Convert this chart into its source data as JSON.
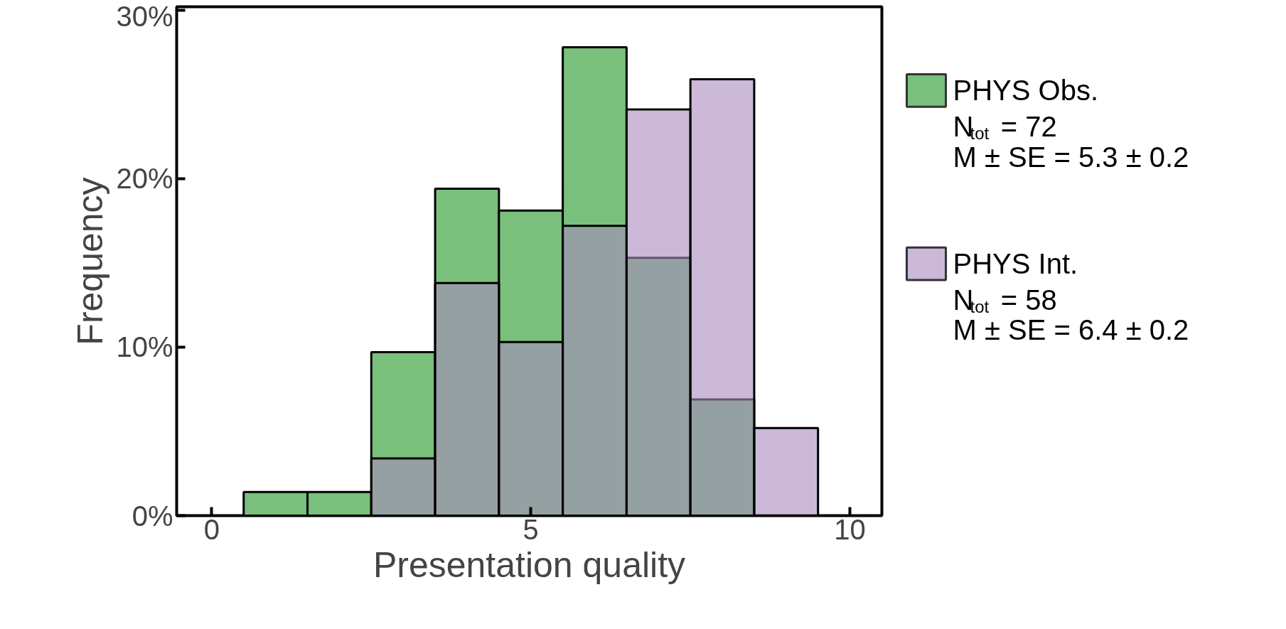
{
  "chart_data": {
    "type": "histogram",
    "xlabel": "Presentation quality",
    "ylabel": "Frequency",
    "bins": [
      0.5,
      1.5,
      2.5,
      3.5,
      4.5,
      5.5,
      6.5,
      7.5,
      8.5,
      9.5
    ],
    "series": [
      {
        "name": "PHYS Obs.",
        "color": "#78c07c",
        "values": [
          1.4,
          1.4,
          9.7,
          19.4,
          18.1,
          27.8,
          15.3,
          6.9,
          0
        ]
      },
      {
        "name": "PHYS Int.",
        "color": "#a98bbd",
        "values": [
          0,
          0,
          3.4,
          13.8,
          10.3,
          17.2,
          24.1,
          25.9,
          5.2
        ]
      }
    ],
    "xlim": [
      -0.55,
      10.5
    ],
    "ylim": [
      0,
      30.2
    ],
    "xticks": [
      0,
      5,
      10
    ],
    "yticks": [
      {
        "value": 0,
        "label": "0%"
      },
      {
        "value": 10,
        "label": "10%"
      },
      {
        "value": 20,
        "label": "20%"
      },
      {
        "value": 30,
        "label": "30%"
      }
    ],
    "legend": "right",
    "grid": false,
    "annotations": [
      "N$_{tot}$ = 72",
      "M ± SE = 5.3 ± 0.2",
      "N$_{tot}$ = 58",
      "M ± SE = 6.4 ± 0.2"
    ]
  }
}
